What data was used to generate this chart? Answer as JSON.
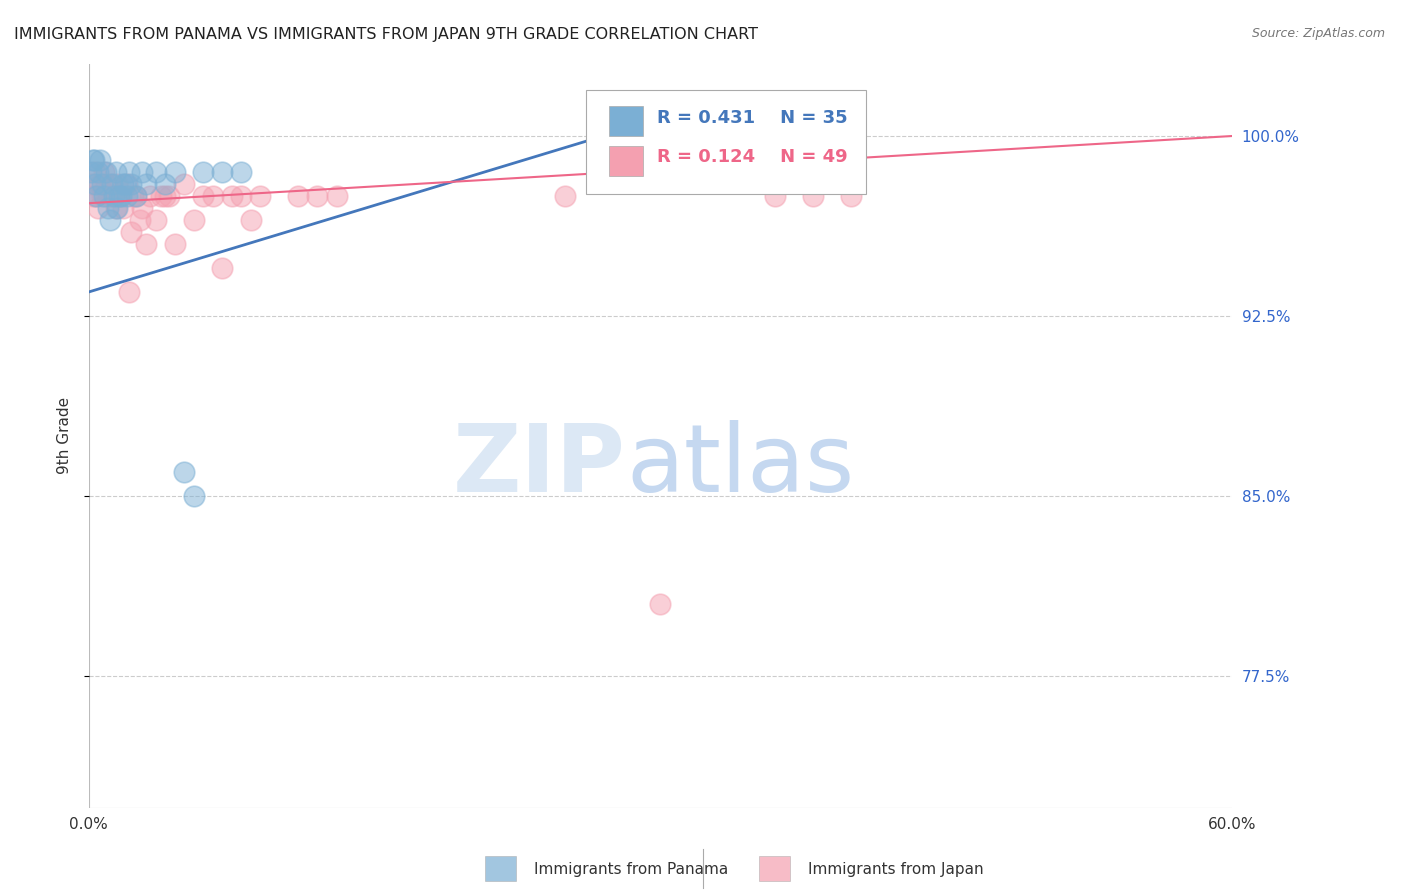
{
  "title": "IMMIGRANTS FROM PANAMA VS IMMIGRANTS FROM JAPAN 9TH GRADE CORRELATION CHART",
  "source": "Source: ZipAtlas.com",
  "ylabel": "9th Grade",
  "yticks": [
    77.5,
    85.0,
    92.5,
    100.0
  ],
  "ytick_labels": [
    "77.5%",
    "85.0%",
    "92.5%",
    "100.0%"
  ],
  "xlim": [
    0.0,
    60.0
  ],
  "ylim": [
    72.0,
    103.0
  ],
  "legend_blue_r": "0.431",
  "legend_blue_n": "35",
  "legend_pink_r": "0.124",
  "legend_pink_n": "49",
  "legend_label_blue": "Immigrants from Panama",
  "legend_label_pink": "Immigrants from Japan",
  "blue_color": "#7BAFD4",
  "pink_color": "#F4A0B0",
  "blue_line_color": "#4477BB",
  "pink_line_color": "#EE6688",
  "blue_line_x": [
    0.0,
    27.0
  ],
  "blue_line_y": [
    93.5,
    100.0
  ],
  "pink_line_x": [
    0.0,
    60.0
  ],
  "pink_line_y": [
    97.2,
    100.0
  ],
  "panama_x": [
    0.1,
    0.2,
    0.3,
    0.4,
    0.5,
    0.6,
    0.7,
    0.8,
    0.9,
    1.0,
    1.1,
    1.2,
    1.3,
    1.4,
    1.5,
    1.6,
    1.8,
    2.0,
    2.2,
    2.5,
    2.8,
    3.0,
    3.5,
    4.0,
    4.5,
    5.0,
    5.5,
    6.0,
    7.0,
    8.0,
    27.0,
    1.7,
    1.9,
    2.1,
    0.25
  ],
  "panama_y": [
    98.5,
    99.0,
    98.0,
    97.5,
    98.5,
    99.0,
    98.0,
    97.5,
    98.5,
    97.0,
    96.5,
    98.0,
    97.5,
    98.5,
    97.0,
    97.5,
    98.0,
    97.5,
    98.0,
    97.5,
    98.5,
    98.0,
    98.5,
    98.0,
    98.5,
    86.0,
    85.0,
    98.5,
    98.5,
    98.5,
    100.0,
    97.5,
    98.0,
    98.5,
    99.0
  ],
  "japan_x": [
    0.1,
    0.2,
    0.3,
    0.5,
    0.6,
    0.7,
    0.8,
    1.0,
    1.1,
    1.2,
    1.4,
    1.5,
    1.7,
    1.8,
    2.0,
    2.2,
    2.5,
    2.8,
    3.0,
    3.5,
    4.0,
    4.5,
    5.0,
    5.5,
    6.0,
    7.0,
    8.0,
    8.5,
    9.0,
    11.0,
    12.0,
    13.0,
    25.0,
    36.0,
    38.0,
    40.0,
    0.4,
    0.9,
    1.3,
    1.6,
    2.1,
    2.3,
    2.7,
    3.2,
    3.8,
    4.2,
    6.5,
    7.5,
    30.0
  ],
  "japan_y": [
    98.0,
    97.5,
    98.5,
    97.0,
    98.0,
    97.5,
    98.5,
    97.5,
    98.0,
    97.5,
    97.0,
    98.0,
    97.5,
    97.0,
    98.0,
    96.0,
    97.5,
    97.0,
    95.5,
    96.5,
    97.5,
    95.5,
    98.0,
    96.5,
    97.5,
    94.5,
    97.5,
    96.5,
    97.5,
    97.5,
    97.5,
    97.5,
    97.5,
    97.5,
    97.5,
    97.5,
    97.5,
    98.0,
    97.5,
    97.5,
    93.5,
    97.5,
    96.5,
    97.5,
    97.5,
    97.5,
    97.5,
    97.5,
    80.5
  ]
}
